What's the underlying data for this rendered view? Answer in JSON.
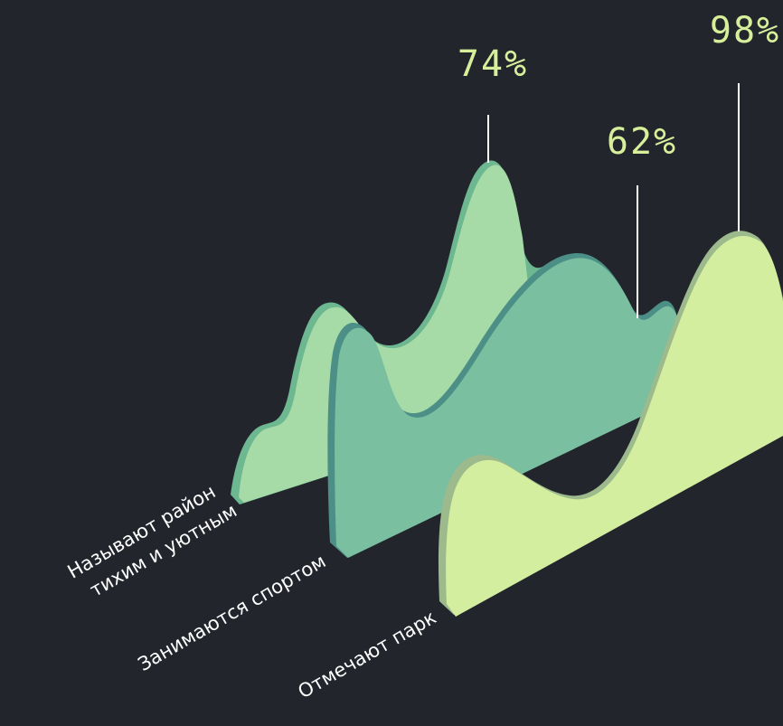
{
  "chart_data": {
    "type": "area",
    "series": [
      {
        "label_lines": [
          "Называют район",
          "тихим и уютным"
        ],
        "value": 74,
        "value_label": "74%",
        "color": "#a6dba7",
        "edge_color": "#6db890"
      },
      {
        "label_lines": [
          "Занимаются спортом"
        ],
        "value": 62,
        "value_label": "62%",
        "color": "#79bfa0",
        "edge_color": "#4b8f86"
      },
      {
        "label_lines": [
          "Отмечают парк"
        ],
        "value": 98,
        "value_label": "98%",
        "color": "#d4eea0",
        "edge_color": "#9dba8d"
      }
    ],
    "colors": {
      "background": "#22252c",
      "value_text": "#d7ef9b",
      "label_text": "#ffffff",
      "leader_line": "#ffffff"
    }
  }
}
